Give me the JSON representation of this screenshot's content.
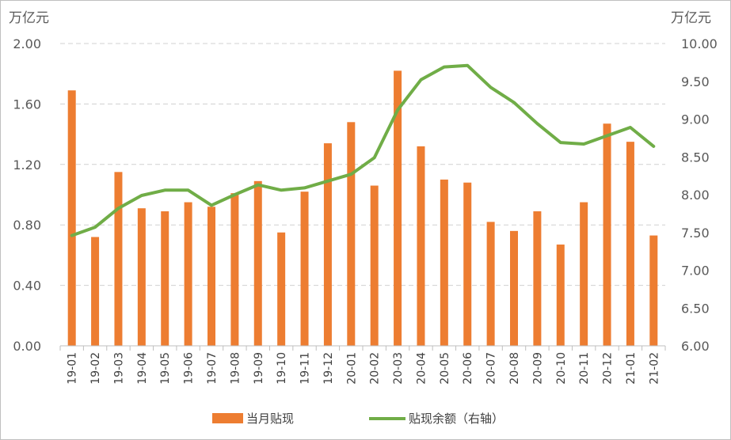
{
  "chart_data": {
    "type": "bar+line",
    "left_unit_label": "万亿元",
    "right_unit_label": "万亿元",
    "categories": [
      "19-01",
      "19-02",
      "19-03",
      "19-04",
      "19-05",
      "19-06",
      "19-07",
      "19-08",
      "19-09",
      "19-10",
      "19-11",
      "19-12",
      "20-01",
      "20-02",
      "20-03",
      "20-04",
      "20-05",
      "20-06",
      "20-07",
      "20-08",
      "20-09",
      "20-10",
      "20-11",
      "20-12",
      "21-01",
      "21-02"
    ],
    "left_axis": {
      "min": 0,
      "max": 2.0,
      "ticks": [
        "0.00",
        "0.40",
        "0.80",
        "1.20",
        "1.60",
        "2.00"
      ],
      "tick_values": [
        0,
        0.4,
        0.8,
        1.2,
        1.6,
        2.0
      ]
    },
    "right_axis": {
      "min": 6.0,
      "max": 10.0,
      "ticks": [
        "6.00",
        "6.50",
        "7.00",
        "7.50",
        "8.00",
        "8.50",
        "9.00",
        "9.50",
        "10.00"
      ],
      "tick_values": [
        6.0,
        6.5,
        7.0,
        7.5,
        8.0,
        8.5,
        9.0,
        9.5,
        10.0
      ]
    },
    "grid": true,
    "legend_position": "bottom",
    "series": [
      {
        "name": "当月贴现",
        "type": "bar",
        "axis": "left",
        "color": "#ed7d31",
        "values": [
          1.69,
          0.72,
          1.15,
          0.91,
          0.89,
          0.95,
          0.92,
          1.01,
          1.09,
          0.75,
          1.02,
          1.34,
          1.48,
          1.06,
          1.82,
          1.32,
          1.1,
          1.08,
          0.82,
          0.76,
          0.89,
          0.67,
          0.95,
          1.47,
          1.35,
          0.73
        ]
      },
      {
        "name": "贴现余额（右轴）",
        "type": "line",
        "axis": "right",
        "color": "#70ad47",
        "values": [
          7.46,
          7.57,
          7.82,
          7.99,
          8.06,
          8.06,
          7.86,
          8.0,
          8.13,
          8.06,
          8.09,
          8.18,
          8.27,
          8.49,
          9.12,
          9.52,
          9.69,
          9.71,
          9.42,
          9.22,
          8.94,
          8.69,
          8.67,
          8.78,
          8.89,
          8.64
        ]
      }
    ]
  }
}
